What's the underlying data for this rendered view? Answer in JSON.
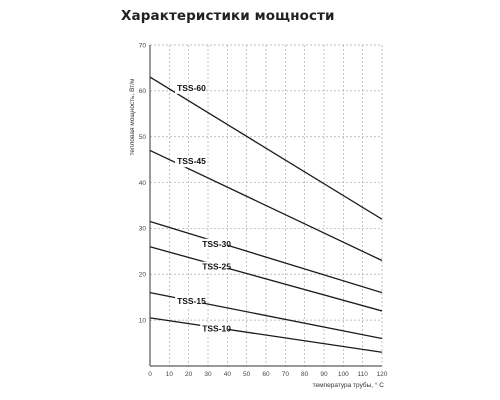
{
  "chart_data": {
    "type": "line",
    "title": "Характеристики мощности",
    "xlabel": "температура трубы, ° C",
    "ylabel": "тепловая мощность, Вт/м",
    "xlim": [
      0,
      120
    ],
    "ylim": [
      0,
      70
    ],
    "x_ticks": [
      "0",
      "10",
      "20",
      "30",
      "40",
      "50",
      "60",
      "70",
      "80",
      "90",
      "100",
      "110",
      "120"
    ],
    "y_ticks": [
      "10",
      "20",
      "30",
      "40",
      "50",
      "60",
      "70"
    ],
    "grid": true,
    "legend": "none",
    "series": [
      {
        "name": "TSS-60",
        "x": [
          0,
          120
        ],
        "y": [
          63,
          32
        ],
        "label_x": 14,
        "label_y": 60
      },
      {
        "name": "TSS-45",
        "x": [
          0,
          120
        ],
        "y": [
          47,
          23
        ],
        "label_x": 14,
        "label_y": 44
      },
      {
        "name": "TSS-30",
        "x": [
          0,
          120
        ],
        "y": [
          31.5,
          16
        ],
        "label_x": 27,
        "label_y": 26
      },
      {
        "name": "TSS-25",
        "x": [
          0,
          120
        ],
        "y": [
          26,
          12
        ],
        "label_x": 27,
        "label_y": 21
      },
      {
        "name": "TSS-15",
        "x": [
          0,
          120
        ],
        "y": [
          16,
          6
        ],
        "label_x": 14,
        "label_y": 13.5
      },
      {
        "name": "TSS-10",
        "x": [
          0,
          120
        ],
        "y": [
          10.5,
          3
        ],
        "label_x": 27,
        "label_y": 7.5
      }
    ],
    "colors": {
      "line": "#1a1a1a",
      "grid": "#aaaaaa",
      "axis": "#333333"
    }
  }
}
